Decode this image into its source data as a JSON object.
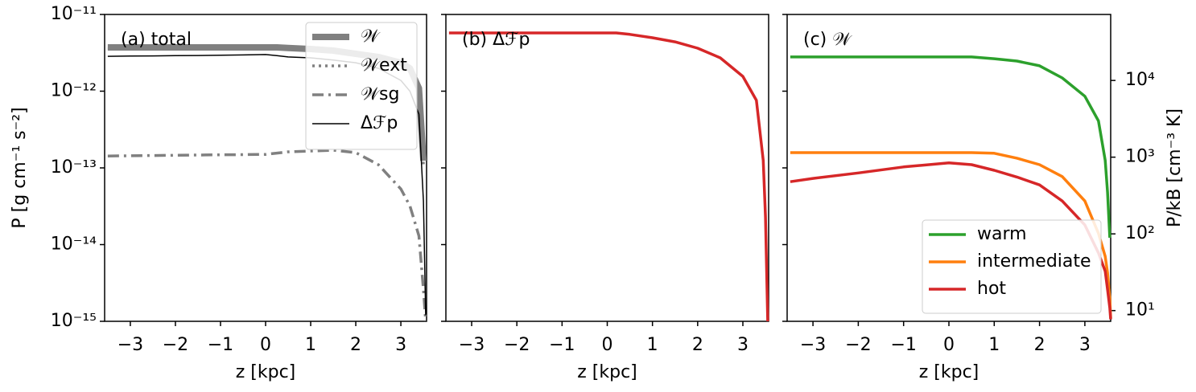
{
  "chart_data": [
    {
      "type": "line",
      "annotation": "(a) total",
      "xlabel": "z [kpc]",
      "ylabel": "P [g cm⁻¹ s⁻²]",
      "log_y": true,
      "legend": "upper right",
      "xlim": [
        -3.57,
        3.57
      ],
      "xticks": [
        {
          "value": -3,
          "label": "−3"
        },
        {
          "value": -2,
          "label": "−2"
        },
        {
          "value": -1,
          "label": "−1"
        },
        0,
        1,
        2,
        3
      ],
      "ylim": [
        1e-15,
        1e-11
      ],
      "yticks": [
        {
          "value": 1e-15,
          "label": "10⁻¹⁵"
        },
        {
          "value": 1e-14,
          "label": "10⁻¹⁴"
        },
        {
          "value": 1e-13,
          "label": "10⁻¹³"
        },
        {
          "value": 1e-12,
          "label": "10⁻¹²"
        },
        {
          "value": 1e-11,
          "label": "10⁻¹¹"
        }
      ],
      "x": [
        -3.5,
        -3,
        -2.5,
        -2,
        -1.5,
        -1,
        -0.5,
        0,
        0.25,
        0.5,
        1,
        1.5,
        2,
        2.5,
        3,
        3.2,
        3.4,
        3.5,
        3.55
      ],
      "series": [
        {
          "name": "𝒲",
          "color": "#808080",
          "linestyle": "solid",
          "values": [
            3.72e-12,
            3.72e-12,
            3.72e-12,
            3.72e-12,
            3.72e-12,
            3.72e-12,
            3.72e-12,
            3.72e-12,
            3.72e-12,
            3.65e-12,
            3.55e-12,
            3.38e-12,
            3.07e-12,
            2.79e-12,
            2.35e-12,
            1.99e-12,
            1.09e-12,
            1.24e-13,
            null
          ]
        },
        {
          "name": "𝒲ext",
          "color": "#808080",
          "linestyle": "dotted",
          "values": [
            3.6e-12,
            3.6e-12,
            3.6e-12,
            3.6e-12,
            3.6e-12,
            3.6e-12,
            3.6e-12,
            3.6e-12,
            3.6e-12,
            3.5e-12,
            3.4e-12,
            3.25e-12,
            2.95e-12,
            2.68e-12,
            2.25e-12,
            1.9e-12,
            1e-12,
            1.1e-13,
            null
          ]
        },
        {
          "name": "𝒲sg",
          "color": "#808080",
          "linestyle": "dashdot",
          "values": [
            1.43e-13,
            1.44e-13,
            1.45e-13,
            1.46e-13,
            1.47e-13,
            1.48e-13,
            1.49e-13,
            1.5e-13,
            1.56e-13,
            1.62e-13,
            1.66e-13,
            1.7e-13,
            1.58e-13,
            1.1e-13,
            5.3e-14,
            3.2e-14,
            1.3e-14,
            2.6e-15,
            1e-15
          ]
        },
        {
          "name": "Δℱp",
          "color": "#000000",
          "linestyle": "solid",
          "values": [
            2.85e-12,
            2.87e-12,
            2.88e-12,
            2.9e-12,
            2.92e-12,
            2.94e-12,
            2.97e-12,
            3e-12,
            2.9e-12,
            2.79e-12,
            2.72e-12,
            2.55e-12,
            2.35e-12,
            1.99e-12,
            1.38e-12,
            1e-12,
            5e-13,
            3.7e-14,
            1.2e-15
          ]
        }
      ]
    },
    {
      "type": "line",
      "annotation": "(b) Δℱp",
      "xlabel": "z [kpc]",
      "log_y": true,
      "xlim": [
        -3.57,
        3.57
      ],
      "xticks": [
        {
          "value": -3,
          "label": "−3"
        },
        {
          "value": -2,
          "label": "−2"
        },
        {
          "value": -1,
          "label": "−1"
        },
        0,
        1,
        2,
        3
      ],
      "ylim": [
        1e-15,
        1e-11
      ],
      "yticks": [
        1e-15,
        1e-14,
        1e-13,
        1e-12,
        1e-11
      ],
      "x": [
        -3.5,
        -3,
        -2,
        -1,
        0,
        0.2,
        0.5,
        1,
        1.5,
        2,
        2.5,
        3,
        3.3,
        3.45,
        3.5,
        3.55
      ],
      "series": [
        {
          "name": "Δℱp",
          "color": "#d62728",
          "linestyle": "solid",
          "values": [
            5.74e-12,
            5.74e-12,
            5.74e-12,
            5.74e-12,
            5.74e-12,
            5.74e-12,
            5.5e-12,
            4.97e-12,
            4.4e-12,
            3.63e-12,
            2.72e-12,
            1.56e-12,
            7.6e-13,
            1.25e-13,
            2.3e-14,
            1e-15
          ]
        }
      ]
    },
    {
      "type": "line",
      "annotation": "(c) 𝒲",
      "xlabel": "z [kpc]",
      "y2label": "P/kB [cm⁻³ K]",
      "log_y": true,
      "legend": "lower right",
      "xlim": [
        -3.57,
        3.57
      ],
      "xticks": [
        {
          "value": -3,
          "label": "−3"
        },
        {
          "value": -2,
          "label": "−2"
        },
        {
          "value": -1,
          "label": "−1"
        },
        0,
        1,
        2,
        3
      ],
      "ylim": [
        1e-15,
        1e-11
      ],
      "yticks": [
        1e-15,
        1e-14,
        1e-13,
        1e-12,
        1e-11
      ],
      "y2lim": [
        7.25,
        72464
      ],
      "y2ticks": [
        {
          "value": 10,
          "label": "10¹"
        },
        {
          "value": 100,
          "label": "10²"
        },
        {
          "value": 1000,
          "label": "10³"
        },
        {
          "value": 10000,
          "label": "10⁴"
        }
      ],
      "x": [
        -3.5,
        -3,
        -2,
        -1,
        0,
        0.5,
        1,
        1.5,
        2,
        2.5,
        3,
        3.3,
        3.45,
        3.5,
        3.55,
        3.57
      ],
      "series": [
        {
          "name": "warm",
          "color": "#2ca02c",
          "linestyle": "solid",
          "values": [
            2.79e-12,
            2.79e-12,
            2.79e-12,
            2.79e-12,
            2.79e-12,
            2.79e-12,
            2.65e-12,
            2.47e-12,
            2.14e-12,
            1.49e-12,
            8.6e-13,
            4.1e-13,
            1.25e-13,
            4.8e-14,
            1.23e-14,
            null
          ]
        },
        {
          "name": "intermediate",
          "color": "#ff7f0e",
          "linestyle": "solid",
          "values": [
            1.58e-13,
            1.58e-13,
            1.58e-13,
            1.58e-13,
            1.58e-13,
            1.58e-13,
            1.55e-13,
            1.34e-13,
            1.1e-13,
            7.7e-14,
            3.7e-14,
            1.4e-14,
            7e-15,
            4.3e-15,
            2e-15,
            1.1e-15
          ]
        },
        {
          "name": "hot",
          "color": "#d62728",
          "linestyle": "solid",
          "values": [
            6.6e-14,
            7.3e-14,
            8.6e-14,
            1.03e-13,
            1.16e-13,
            1.1e-13,
            9.3e-14,
            7.6e-14,
            6e-14,
            3.7e-14,
            1.8e-14,
            7.8e-15,
            4.5e-15,
            2.6e-15,
            1.5e-15,
            1.06e-15
          ]
        }
      ]
    }
  ]
}
